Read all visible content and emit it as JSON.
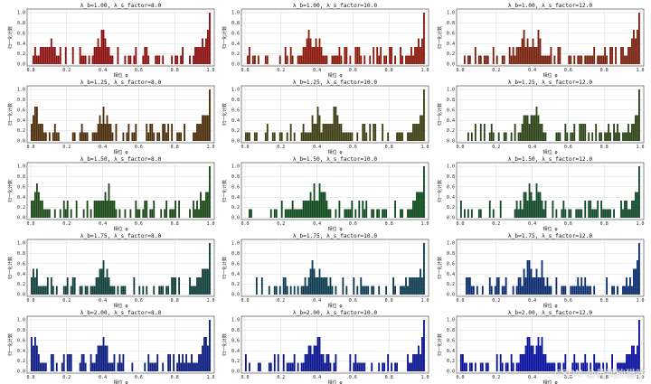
{
  "figure": {
    "watermark": "CSDN @黄鸭的猫咪"
  },
  "chart_data": {
    "type": "bar",
    "grid": true,
    "layout": "5 rows x 3 columns",
    "xlabel": "相位 φ",
    "ylabel": "归一化计数",
    "xlim": [
      0,
      1
    ],
    "ylim": [
      0,
      1
    ],
    "xticks": [
      "0.0",
      "0.2",
      "0.4",
      "0.6",
      "0.8",
      "1.0"
    ],
    "yticks": [
      "0.0",
      "0.2",
      "0.4",
      "0.6",
      "0.8",
      "1.0"
    ],
    "bins": 100,
    "panels": [
      {
        "title": "λ_b=1.00, λ_s_factor=8.0",
        "color": "#8b1010",
        "seed": 11,
        "peaks": [
          0.1,
          0.4,
          0.98
        ]
      },
      {
        "title": "λ_b=1.00, λ_s_factor=10.0",
        "color": "#8b1a0c",
        "seed": 12,
        "peaks": [
          0.35,
          0.4,
          0.98
        ]
      },
      {
        "title": "λ_b=1.00, λ_s_factor=12.0",
        "color": "#7a2210",
        "seed": 13,
        "peaks": [
          0.35,
          0.42,
          0.98
        ]
      },
      {
        "title": "λ_b=1.25, λ_s_factor=8.0",
        "color": "#4d2f0c",
        "seed": 21,
        "peaks": [
          0.02,
          0.4,
          0.98
        ]
      },
      {
        "title": "λ_b=1.25, λ_s_factor=10.0",
        "color": "#3e3f14",
        "seed": 22,
        "peaks": [
          0.4,
          0.5,
          0.99
        ]
      },
      {
        "title": "λ_b=1.25, λ_s_factor=12.0",
        "color": "#2c4418",
        "seed": 23,
        "peaks": [
          0.38,
          0.42,
          0.99
        ]
      },
      {
        "title": "λ_b=1.50, λ_s_factor=8.0",
        "color": "#1c4a18",
        "seed": 31,
        "peaks": [
          0.03,
          0.42,
          0.99
        ]
      },
      {
        "title": "λ_b=1.50, λ_s_factor=10.0",
        "color": "#0f4b1c",
        "seed": 32,
        "peaks": [
          0.38,
          0.42,
          0.99
        ]
      },
      {
        "title": "λ_b=1.50, λ_s_factor=12.0",
        "color": "#124a2a",
        "seed": 33,
        "peaks": [
          0.38,
          0.42,
          0.99
        ]
      },
      {
        "title": "λ_b=1.75, λ_s_factor=8.0",
        "color": "#12403c",
        "seed": 41,
        "peaks": [
          0.01,
          0.4,
          0.99
        ]
      },
      {
        "title": "λ_b=1.75, λ_s_factor=10.0",
        "color": "#0f3c52",
        "seed": 42,
        "peaks": [
          0.38,
          0.42,
          0.98
        ]
      },
      {
        "title": "λ_b=1.75, λ_s_factor=12.0",
        "color": "#0c2e6e",
        "seed": 43,
        "peaks": [
          0.38,
          0.45,
          0.99
        ]
      },
      {
        "title": "λ_b=2.00, λ_s_factor=8.0",
        "color": "#0e1e82",
        "seed": 51,
        "peaks": [
          0.01,
          0.4,
          0.98
        ]
      },
      {
        "title": "λ_b=2.00, λ_s_factor=10.0",
        "color": "#0c1690",
        "seed": 52,
        "peaks": [
          0.38,
          0.42,
          0.99
        ]
      },
      {
        "title": "λ_b=2.00, λ_s_factor=12.0",
        "color": "#0a12a0",
        "seed": 53,
        "peaks": [
          0.38,
          0.45,
          0.99
        ]
      }
    ]
  }
}
